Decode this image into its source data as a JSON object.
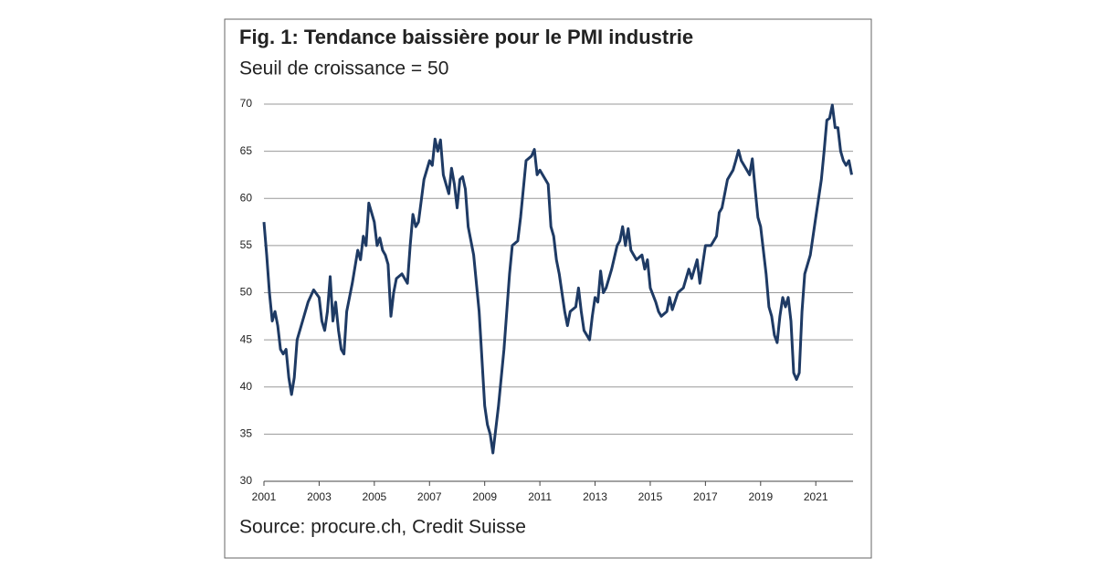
{
  "chart_data": {
    "type": "line",
    "title": "Fig. 1: Tendance baissière pour le PMI industrie",
    "subtitle": "Seuil de croissance = 50",
    "source": "Source: procure.ch, Credit Suisse",
    "x": [
      2001.0,
      2001.1,
      2001.2,
      2001.3,
      2001.4,
      2001.5,
      2001.6,
      2001.7,
      2001.8,
      2001.9,
      2002.0,
      2002.1,
      2002.2,
      2002.4,
      2002.6,
      2002.8,
      2003.0,
      2003.1,
      2003.2,
      2003.3,
      2003.4,
      2003.5,
      2003.6,
      2003.7,
      2003.8,
      2003.9,
      2004.0,
      2004.2,
      2004.4,
      2004.5,
      2004.6,
      2004.7,
      2004.8,
      2004.9,
      2005.0,
      2005.1,
      2005.2,
      2005.3,
      2005.4,
      2005.5,
      2005.6,
      2005.7,
      2005.8,
      2006.0,
      2006.2,
      2006.3,
      2006.4,
      2006.5,
      2006.6,
      2006.8,
      2007.0,
      2007.1,
      2007.2,
      2007.3,
      2007.4,
      2007.5,
      2007.6,
      2007.7,
      2007.8,
      2007.9,
      2008.0,
      2008.1,
      2008.2,
      2008.3,
      2008.4,
      2008.6,
      2008.8,
      2009.0,
      2009.1,
      2009.2,
      2009.3,
      2009.5,
      2009.7,
      2009.9,
      2010.0,
      2010.2,
      2010.3,
      2010.5,
      2010.7,
      2010.8,
      2010.9,
      2011.0,
      2011.1,
      2011.3,
      2011.4,
      2011.5,
      2011.6,
      2011.7,
      2011.9,
      2012.0,
      2012.1,
      2012.3,
      2012.4,
      2012.5,
      2012.6,
      2012.8,
      2012.9,
      2013.0,
      2013.1,
      2013.2,
      2013.3,
      2013.4,
      2013.6,
      2013.8,
      2013.9,
      2014.0,
      2014.1,
      2014.2,
      2014.3,
      2014.5,
      2014.7,
      2014.8,
      2014.9,
      2015.0,
      2015.2,
      2015.3,
      2015.4,
      2015.6,
      2015.7,
      2015.8,
      2016.0,
      2016.2,
      2016.4,
      2016.5,
      2016.6,
      2016.7,
      2016.8,
      2017.0,
      2017.2,
      2017.4,
      2017.5,
      2017.6,
      2017.8,
      2018.0,
      2018.1,
      2018.2,
      2018.3,
      2018.4,
      2018.6,
      2018.7,
      2018.8,
      2018.9,
      2019.0,
      2019.2,
      2019.3,
      2019.4,
      2019.5,
      2019.6,
      2019.7,
      2019.8,
      2019.9,
      2020.0,
      2020.1,
      2020.2,
      2020.3,
      2020.4,
      2020.5,
      2020.6,
      2020.8,
      2021.0,
      2021.2,
      2021.3,
      2021.4,
      2021.5,
      2021.6,
      2021.7,
      2021.8,
      2021.9,
      2022.0,
      2022.1,
      2022.2,
      2022.3
    ],
    "series": [
      {
        "color": "#1e3a64",
        "values": [
          57.5,
          54,
          50,
          47,
          48,
          46.5,
          44,
          43.5,
          44,
          41,
          39.2,
          41,
          45,
          47,
          49,
          50.3,
          49.5,
          47,
          46,
          48,
          51.7,
          47,
          49,
          46,
          44,
          43.5,
          48,
          51,
          54.5,
          53.5,
          56,
          55,
          59.5,
          58.5,
          57.5,
          55,
          55.8,
          54.5,
          54,
          53,
          47.5,
          50,
          51.5,
          52,
          51,
          55,
          58.3,
          57,
          57.5,
          62,
          64,
          63.5,
          66.3,
          65,
          66.2,
          62.5,
          61.5,
          60.5,
          63.2,
          61.5,
          59,
          62,
          62.3,
          61,
          57,
          54,
          48,
          38,
          36,
          35,
          33,
          38,
          44,
          52,
          55,
          55.5,
          58,
          64,
          64.5,
          65.2,
          62.5,
          63,
          62.5,
          61.5,
          57,
          56,
          53.5,
          52,
          48,
          46.5,
          48,
          48.5,
          50.5,
          48,
          46,
          45,
          47.5,
          49.5,
          49,
          52.3,
          50,
          50.5,
          52.5,
          55,
          55.5,
          57,
          55,
          56.8,
          54.5,
          53.5,
          54,
          52.5,
          53.5,
          50.5,
          49,
          48,
          47.5,
          48,
          49.5,
          48.2,
          50,
          50.5,
          52.5,
          51.5,
          52.5,
          53.5,
          51,
          55,
          55,
          56,
          58.5,
          59,
          62,
          63,
          64,
          65.1,
          64,
          63.5,
          62.5,
          64.2,
          61,
          58,
          57,
          52,
          48.5,
          47.5,
          45.5,
          44.7,
          47.5,
          49.5,
          48.5,
          49.5,
          47,
          41.5,
          40.8,
          41.5,
          48,
          52,
          54,
          58,
          62,
          65,
          68.3,
          68.5,
          69.9,
          67.5,
          67.5,
          65,
          64,
          63.5,
          64,
          62.5
        ]
      }
    ],
    "xlim": [
      2001,
      2022.35
    ],
    "xticks": [
      2001,
      2003,
      2005,
      2007,
      2009,
      2011,
      2013,
      2015,
      2017,
      2019,
      2021
    ],
    "ylim": [
      30,
      70
    ],
    "yticks": [
      30,
      35,
      40,
      45,
      50,
      55,
      60,
      65,
      70
    ],
    "grid": true
  }
}
